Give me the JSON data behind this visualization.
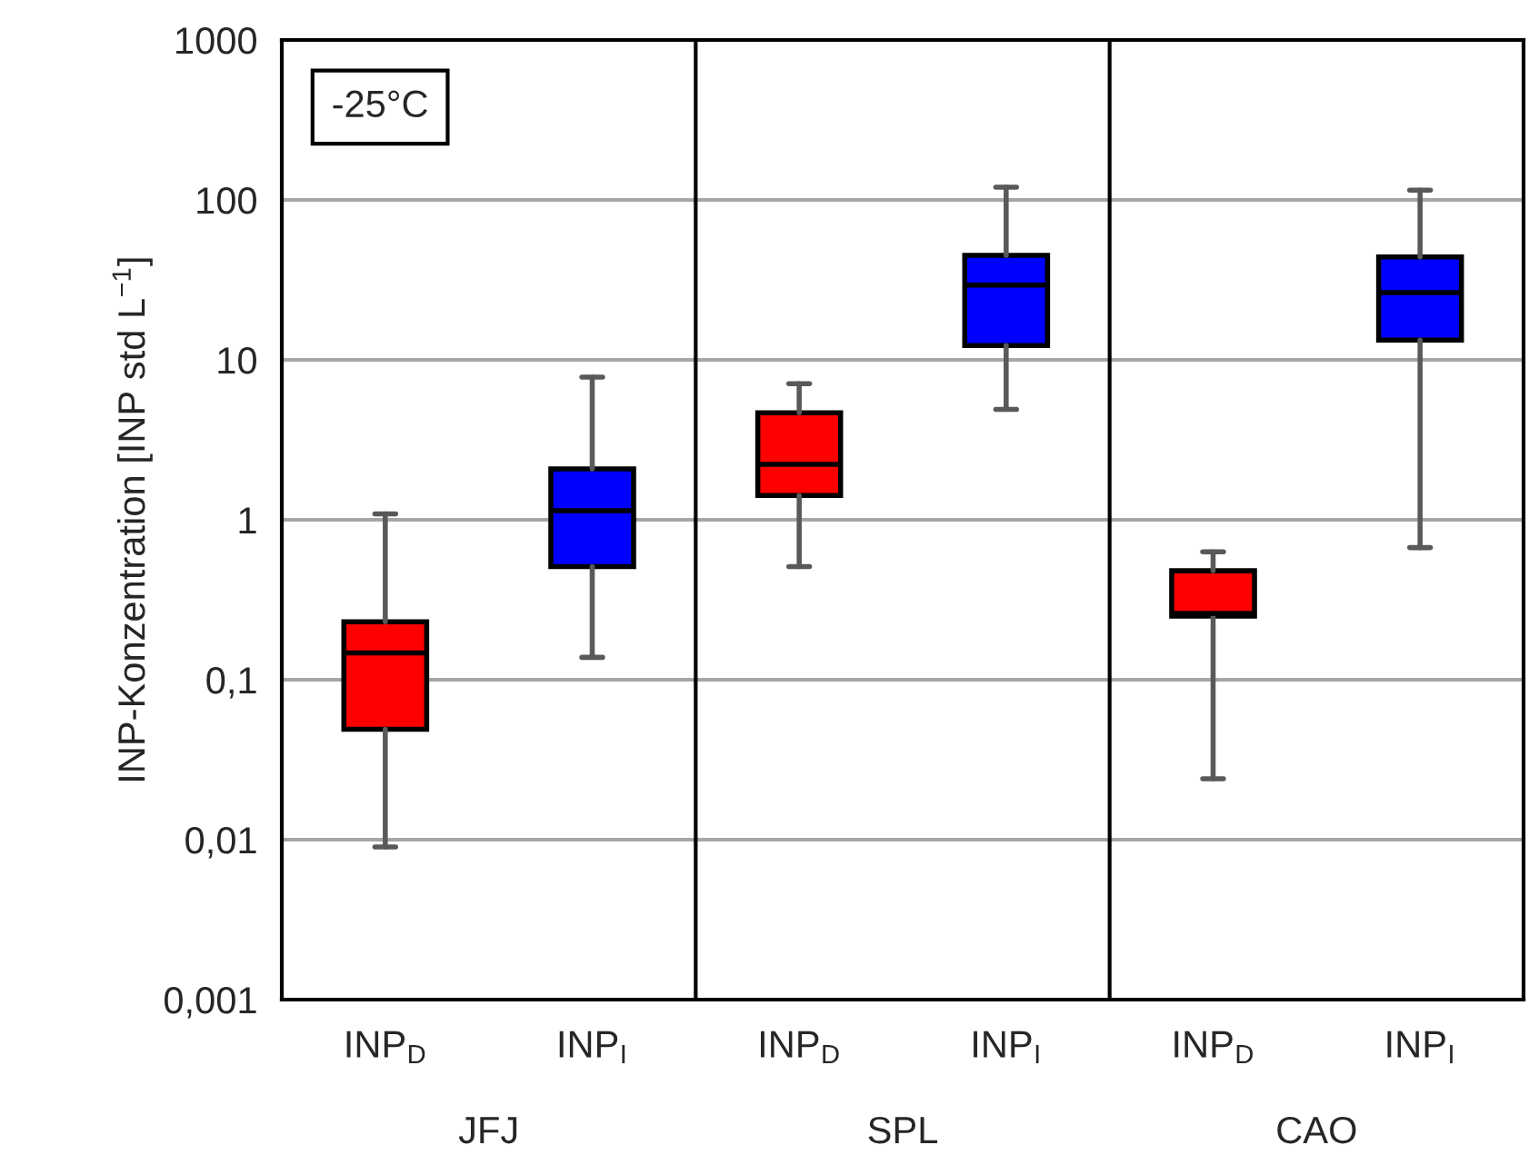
{
  "chart_data": {
    "type": "box",
    "ylabel": "INP-Konzentration [INP std L$^{−1}$]",
    "categories": [
      "INP$_{D}$",
      "INP$_{I}$",
      "INP$_{D}$",
      "INP$_{I}$",
      "INP$_{D}$",
      "INP$_{I}$"
    ],
    "boxes": [
      {
        "low": 0.009,
        "q1": 0.049,
        "median": 0.147,
        "q3": 0.23,
        "high": 1.09
      },
      {
        "low": 0.138,
        "q1": 0.51,
        "median": 1.14,
        "q3": 2.08,
        "high": 7.8
      },
      {
        "low": 0.51,
        "q1": 1.42,
        "median": 2.22,
        "q3": 4.67,
        "high": 7.1
      },
      {
        "low": 4.9,
        "q1": 12.3,
        "median": 29.3,
        "q3": 45,
        "high": 120
      },
      {
        "low": 0.024,
        "q1": 0.25,
        "median": 0.26,
        "q3": 0.48,
        "high": 0.63
      },
      {
        "low": 0.67,
        "q1": 13.3,
        "median": 26.3,
        "q3": 44,
        "high": 115
      }
    ],
    "colors": [
      "#ff0000",
      "#0000ff",
      "#ff0000",
      "#0000ff",
      "#ff0000",
      "#0000ff"
    ],
    "annotations": [
      "-25°C",
      "JFJ",
      "SPL",
      "CAO"
    ],
    "log": "y",
    "ylim": [
      0.001,
      1000
    ],
    "yticks": [
      {
        "value": 0.001,
        "label": "0,001"
      },
      {
        "value": 0.01,
        "label": "0,01"
      },
      {
        "value": 0.1,
        "label": "0,1"
      },
      {
        "value": 1,
        "label": "1"
      },
      {
        "value": 10,
        "label": "10"
      },
      {
        "value": 100,
        "label": "100"
      },
      {
        "value": 1000,
        "label": "1000"
      }
    ],
    "grid": "y"
  }
}
